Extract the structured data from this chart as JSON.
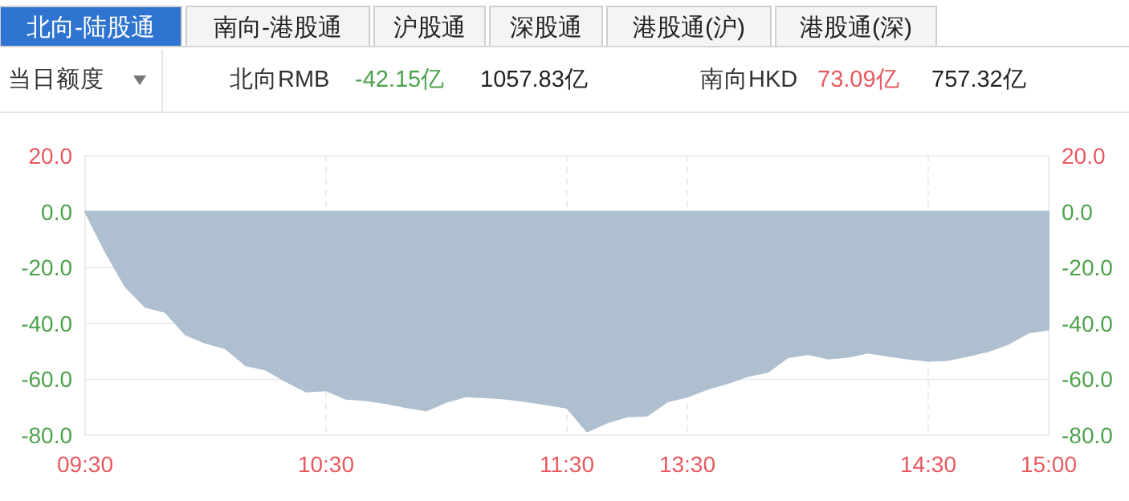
{
  "chart_data": {
    "type": "area",
    "annotations": [
      "北向-陆股通",
      "南向-港股通",
      "沪股通",
      "深股通",
      "港股通(沪)",
      "港股通(深)",
      "当日额度",
      "北向RMB",
      "-42.15亿",
      "1057.83亿",
      "南向HKD",
      "73.09亿",
      "757.32亿"
    ],
    "categories": [
      "09:30",
      null,
      null,
      null,
      null,
      null,
      null,
      null,
      null,
      null,
      null,
      null,
      "10:30",
      null,
      null,
      null,
      null,
      null,
      null,
      null,
      null,
      null,
      null,
      null,
      "11:30",
      null,
      null,
      null,
      null,
      null,
      "13:30",
      null,
      null,
      null,
      null,
      null,
      null,
      null,
      null,
      null,
      null,
      null,
      "14:30",
      null,
      null,
      null,
      null,
      null,
      "15:00"
    ],
    "series": [
      {
        "color": "#aebfcf",
        "values": [
          0,
          -14.2,
          -26.8,
          -34.1,
          -36,
          -44,
          -47,
          -49,
          -55,
          -56.6,
          -60.7,
          -64.4,
          -64,
          -67,
          -67.5,
          -68.6,
          -70,
          -71.2,
          -68.1,
          -66.1,
          -66.5,
          -67,
          -67.9,
          -69,
          -70.2,
          -78.7,
          -75.5,
          -73.3,
          -73,
          -68,
          -66.2,
          -63.5,
          -61.4,
          -58.9,
          -57.4,
          -52.2,
          -51,
          -52.6,
          -52,
          -50.5,
          -51.6,
          -52.6,
          -53.4,
          -53.1,
          -51.6,
          -49.9,
          -47.3,
          -43.3,
          -42.2
        ]
      }
    ],
    "ylim": [
      -80,
      20
    ],
    "yticks": [
      {
        "value": 20,
        "label": "20.0"
      },
      {
        "value": 0,
        "label": "0.0"
      },
      {
        "value": -20,
        "label": "-20.0"
      },
      {
        "value": -40,
        "label": "-40.0"
      },
      {
        "value": -60,
        "label": "-60.0"
      },
      {
        "value": -80,
        "label": "-80.0"
      }
    ],
    "y2lim": [
      -80,
      20
    ],
    "y2ticks": [
      {
        "value": 20,
        "label": "20.0"
      },
      {
        "value": 0,
        "label": "0.0"
      },
      {
        "value": -20,
        "label": "-20.0"
      },
      {
        "value": -40,
        "label": "-40.0"
      },
      {
        "value": -60,
        "label": "-60.0"
      },
      {
        "value": -80,
        "label": "-80.0"
      }
    ],
    "grid": true
  }
}
